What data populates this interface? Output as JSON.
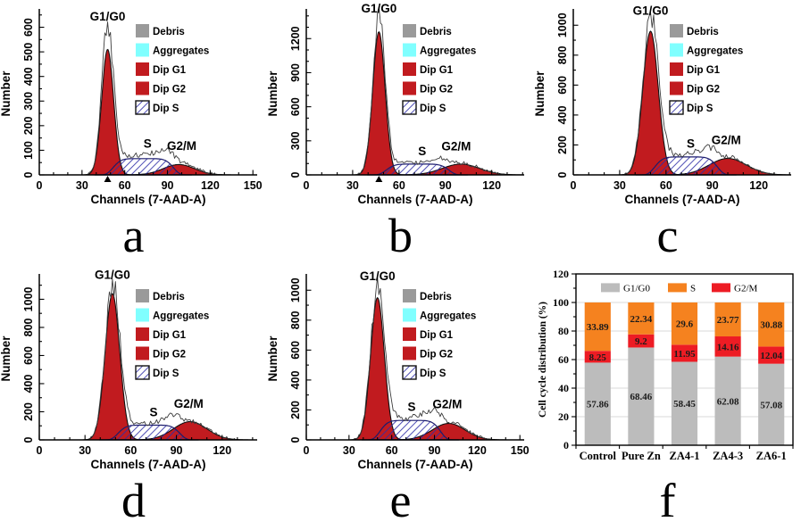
{
  "style": {
    "red_fill": "#c11b1f",
    "hatch_blue": "#2f2fa8",
    "raw_line": "#3c3c3c",
    "axis": "#000000",
    "cyan": "#80ffff",
    "debris_gray": "#9a9a9a",
    "bar_gray": "#bcbcbc",
    "bar_orange": "#f5821f",
    "bar_red": "#ed1c24",
    "grid": "#cccccc",
    "label_ink": "#1b1b1b"
  },
  "hist_legend": [
    {
      "label": "Debris",
      "swatch": "solid",
      "color_key": "debris_gray"
    },
    {
      "label": "Aggregates",
      "swatch": "solid",
      "color_key": "cyan"
    },
    {
      "label": "Dip G1",
      "swatch": "solid",
      "color_key": "red_fill"
    },
    {
      "label": "Dip G2",
      "swatch": "solid",
      "color_key": "red_fill"
    },
    {
      "label": "Dip S",
      "swatch": "hatch",
      "color_key": "hatch_blue"
    }
  ],
  "chart_data": [
    {
      "type": "area",
      "panel": "a",
      "xlabel": "Channels (7-AAD-A)",
      "ylabel": "Number",
      "xlim": [
        0,
        153
      ],
      "ylim": [
        0,
        660
      ],
      "x_ticks": [
        0,
        30,
        60,
        90,
        120,
        150
      ],
      "x_minor_step": 10,
      "y_ticks": [
        0,
        100,
        200,
        300,
        400,
        500,
        600
      ],
      "y_minor_step": 50,
      "marker_x": 48,
      "g1": {
        "mu": 48,
        "sigma": 4.2,
        "amp": 510
      },
      "g2": {
        "mu": 98,
        "sigma": 11,
        "amp": 42
      },
      "s": {
        "center": 73,
        "halfwidth": 22,
        "order": 6,
        "amp": 66
      },
      "raw": {
        "scale": 1.18,
        "cutoff": 124,
        "seed": 11
      },
      "annotations": {
        "g1": "G1/G0",
        "s": "S",
        "g2m": "G2/M",
        "s_x": 76,
        "g2m_x": 100
      }
    },
    {
      "type": "area",
      "panel": "b",
      "xlabel": "Channels (7-AAD-A)",
      "ylabel": "Number",
      "xlim": [
        0,
        141
      ],
      "ylim": [
        0,
        1430
      ],
      "x_ticks": [
        0,
        30,
        60,
        90,
        120
      ],
      "x_minor_step": 10,
      "y_ticks": [
        0,
        300,
        600,
        900,
        1200
      ],
      "y_minor_step": 100,
      "marker_x": 47,
      "g1": {
        "mu": 47,
        "sigma": 4.0,
        "amp": 1260
      },
      "g2": {
        "mu": 100,
        "sigma": 12,
        "amp": 95
      },
      "s": {
        "center": 72,
        "halfwidth": 21,
        "order": 6,
        "amp": 95
      },
      "raw": {
        "scale": 1.09,
        "cutoff": 122,
        "seed": 22
      },
      "annotations": {
        "g1": "G1/G0",
        "s": "S",
        "g2m": "G2/M",
        "s_x": 75,
        "g2m_x": 97
      }
    },
    {
      "type": "area",
      "panel": "c",
      "xlabel": "Channels (7-AAD-A)",
      "ylabel": "Number",
      "xlim": [
        0,
        141
      ],
      "ylim": [
        0,
        1085
      ],
      "x_ticks": [
        0,
        30,
        60,
        90,
        120
      ],
      "x_minor_step": 10,
      "y_ticks": [
        0,
        200,
        400,
        600,
        800,
        1000
      ],
      "y_minor_step": 100,
      "marker_x": null,
      "g1": {
        "mu": 50,
        "sigma": 5.0,
        "amp": 960
      },
      "g2": {
        "mu": 100,
        "sigma": 12,
        "amp": 110
      },
      "s": {
        "center": 73,
        "halfwidth": 21,
        "order": 6,
        "amp": 120
      },
      "raw": {
        "scale": 1.07,
        "cutoff": 125,
        "seed": 33
      },
      "annotations": {
        "g1": "G1/G0",
        "s": "S",
        "g2m": "G2/M",
        "s_x": 76,
        "g2m_x": 99
      }
    },
    {
      "type": "area",
      "panel": "d",
      "xlabel": "Channels (7-AAD-A)",
      "ylabel": "Number",
      "xlim": [
        0,
        143
      ],
      "ylim": [
        0,
        1155
      ],
      "x_ticks": [
        0,
        30,
        60,
        90,
        120
      ],
      "x_minor_step": 10,
      "y_ticks": [
        0,
        200,
        400,
        600,
        800,
        1000
      ],
      "y_minor_step": 100,
      "marker_x": null,
      "g1": {
        "mu": 48,
        "sigma": 4.8,
        "amp": 1040
      },
      "g2": {
        "mu": 99,
        "sigma": 11,
        "amp": 130
      },
      "s": {
        "center": 72,
        "halfwidth": 21,
        "order": 6,
        "amp": 105
      },
      "raw": {
        "scale": 1.06,
        "cutoff": 126,
        "seed": 44
      },
      "annotations": {
        "g1": "G1/G0",
        "s": "S",
        "g2m": "G2/M",
        "s_x": 75,
        "g2m_x": 98
      }
    },
    {
      "type": "area",
      "panel": "e",
      "xlabel": "Channels (7-AAD-A)",
      "ylabel": "Number",
      "xlim": [
        0,
        153
      ],
      "ylim": [
        0,
        1085
      ],
      "x_ticks": [
        0,
        30,
        60,
        90,
        120,
        150
      ],
      "x_minor_step": 10,
      "y_ticks": [
        0,
        200,
        400,
        600,
        800,
        1000
      ],
      "y_minor_step": 100,
      "marker_x": null,
      "g1": {
        "mu": 50,
        "sigma": 4.8,
        "amp": 950
      },
      "g2": {
        "mu": 100,
        "sigma": 11.5,
        "amp": 110
      },
      "s": {
        "center": 73,
        "halfwidth": 22,
        "order": 6,
        "amp": 130
      },
      "raw": {
        "scale": 1.08,
        "cutoff": 126,
        "seed": 55
      },
      "annotations": {
        "g1": "G1/G0",
        "s": "S",
        "g2m": "G2/M",
        "s_x": 74,
        "g2m_x": 99
      }
    },
    {
      "type": "bar",
      "panel": "f",
      "stacked": true,
      "ylabel": "Cell cycle distribution (%)",
      "ylim": [
        0,
        120
      ],
      "y_ticks": [
        0,
        20,
        40,
        60,
        80,
        100,
        120
      ],
      "y_minor_step": 10,
      "categories": [
        "Control",
        "Pure Zn",
        "ZA4-1",
        "ZA4-3",
        "ZA6-1"
      ],
      "series": [
        {
          "name": "G1/G0",
          "color_key": "bar_gray",
          "values": [
            57.86,
            68.46,
            58.45,
            62.08,
            57.08
          ],
          "labels": [
            "57.86",
            "68.46",
            "58.45",
            "62.08",
            "57.08"
          ]
        },
        {
          "name": "G2/M",
          "color_key": "bar_red",
          "values": [
            8.25,
            9.2,
            11.95,
            14.16,
            12.04
          ],
          "labels": [
            "8.25",
            "9.2",
            "11.95",
            "14.16",
            "12.04"
          ]
        },
        {
          "name": "S",
          "color_key": "bar_orange",
          "values": [
            33.89,
            22.34,
            29.6,
            23.77,
            30.88
          ],
          "labels": [
            "33.89",
            "22.34",
            "29.6",
            "23.77",
            "30.88"
          ]
        }
      ],
      "legend": [
        {
          "name": "G1/G0",
          "color_key": "bar_gray"
        },
        {
          "name": "S",
          "color_key": "bar_orange"
        },
        {
          "name": "G2/M",
          "color_key": "bar_red"
        }
      ]
    }
  ]
}
